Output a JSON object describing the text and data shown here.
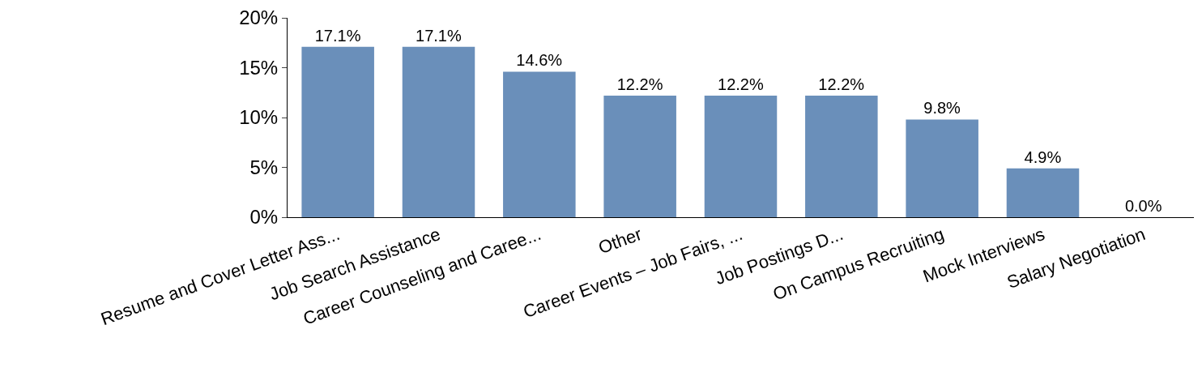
{
  "chart_data": {
    "type": "bar",
    "categories": [
      "Resume and Cover Letter Ass...",
      "Job Search Assistance",
      "Career Counseling and Caree...",
      "Other",
      "Career Events – Job Fairs, ...",
      "Job Postings D...",
      "On Campus Recruiting",
      "Mock Interviews",
      "Salary Negotiation"
    ],
    "values": [
      17.1,
      17.1,
      14.6,
      12.2,
      12.2,
      12.2,
      9.8,
      4.9,
      0.0
    ],
    "value_labels": [
      "17.1%",
      "17.1%",
      "14.6%",
      "12.2%",
      "12.2%",
      "12.2%",
      "9.8%",
      "4.9%",
      "0.0%"
    ],
    "color": "#6a8fba",
    "ylim": [
      0,
      20
    ],
    "yticks": [
      {
        "value": 0,
        "label": "0%"
      },
      {
        "value": 5,
        "label": "5%"
      },
      {
        "value": 10,
        "label": "10%"
      },
      {
        "value": 15,
        "label": "15%"
      },
      {
        "value": 20,
        "label": "20%"
      }
    ],
    "grid": false
  }
}
